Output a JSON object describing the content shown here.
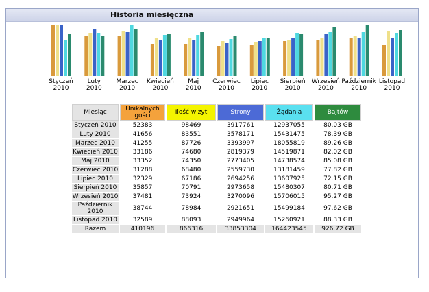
{
  "title": "Historia miesięczna",
  "colors": {
    "visitors": "#f4a23c",
    "visits": "#f4f400",
    "pages": "#4c6ad6",
    "hits": "#5ae0f0",
    "bandwidth": "#2e8b3e",
    "month": "#e4e4e4"
  },
  "table": {
    "headers": [
      "Miesiąc",
      "Unikalnych gości",
      "Ilość wizyt",
      "Strony",
      "Żądania",
      "Bajtów"
    ],
    "rows": [
      {
        "month": "Styczeń 2010",
        "visitors": "52383",
        "visits": "98469",
        "pages": "3917761",
        "hits": "12937055",
        "bandwidth": "80.03 GB"
      },
      {
        "month": "Luty 2010",
        "visitors": "41656",
        "visits": "83551",
        "pages": "3578171",
        "hits": "15431475",
        "bandwidth": "78.39 GB"
      },
      {
        "month": "Marzec 2010",
        "visitors": "41255",
        "visits": "87726",
        "pages": "3393997",
        "hits": "18055819",
        "bandwidth": "89.26 GB"
      },
      {
        "month": "Kwiecień 2010",
        "visitors": "33186",
        "visits": "74680",
        "pages": "2819379",
        "hits": "14519871",
        "bandwidth": "82.02 GB"
      },
      {
        "month": "Maj 2010",
        "visitors": "33352",
        "visits": "74350",
        "pages": "2773405",
        "hits": "14738574",
        "bandwidth": "85.08 GB"
      },
      {
        "month": "Czerwiec 2010",
        "visitors": "31288",
        "visits": "68480",
        "pages": "2559730",
        "hits": "13181459",
        "bandwidth": "77.82 GB"
      },
      {
        "month": "Lipiec 2010",
        "visitors": "32329",
        "visits": "67186",
        "pages": "2694256",
        "hits": "13607925",
        "bandwidth": "72.15 GB"
      },
      {
        "month": "Sierpień 2010",
        "visitors": "35857",
        "visits": "70791",
        "pages": "2973658",
        "hits": "15480307",
        "bandwidth": "80.71 GB"
      },
      {
        "month": "Wrzesień 2010",
        "visitors": "37481",
        "visits": "73924",
        "pages": "3270096",
        "hits": "15706015",
        "bandwidth": "95.27 GB"
      },
      {
        "month": "Październik 2010",
        "visitors": "38744",
        "visits": "78984",
        "pages": "2921651",
        "hits": "15499184",
        "bandwidth": "97.62 GB"
      },
      {
        "month": "Listopad 2010",
        "visitors": "32589",
        "visits": "88093",
        "pages": "2949964",
        "hits": "15260921",
        "bandwidth": "88.33 GB"
      }
    ],
    "total": {
      "label": "Razem",
      "visitors": "410196",
      "visits": "866316",
      "pages": "33853304",
      "hits": "164423545",
      "bandwidth": "926.72 GB"
    }
  },
  "chart_data": {
    "type": "bar",
    "categories": [
      "Styczeń 2010",
      "Luty 2010",
      "Marzec 2010",
      "Kwiecień 2010",
      "Maj 2010",
      "Czerwiec 2010",
      "Lipiec 2010",
      "Sierpień 2010",
      "Wrzesień 2010",
      "Październik 2010",
      "Listopad 2010"
    ],
    "category_labels": [
      [
        "Styczeń",
        "2010"
      ],
      [
        "Luty",
        "2010"
      ],
      [
        "Marzec",
        "2010"
      ],
      [
        "Kwiecień",
        "2010"
      ],
      [
        "Maj",
        "2010"
      ],
      [
        "Czerwiec",
        "2010"
      ],
      [
        "Lipiec",
        "2010"
      ],
      [
        "Sierpień",
        "2010"
      ],
      [
        "Wrzesień",
        "2010"
      ],
      [
        "Październik",
        "2010"
      ],
      [
        "Listopad",
        "2010"
      ]
    ],
    "series": [
      {
        "key": "visitors",
        "color": "#d99a3c",
        "values": [
          52383,
          41656,
          41255,
          33186,
          33352,
          31288,
          32329,
          35857,
          37481,
          38744,
          32589
        ]
      },
      {
        "key": "visits",
        "color": "#efe08a",
        "values": [
          98469,
          83551,
          87726,
          74680,
          74350,
          68480,
          67186,
          70791,
          73924,
          78984,
          88093
        ]
      },
      {
        "key": "pages",
        "color": "#3a63c8",
        "values": [
          3917761,
          3578171,
          3393997,
          2819379,
          2773405,
          2559730,
          2694256,
          2973658,
          3270096,
          2921651,
          2949964
        ]
      },
      {
        "key": "hits",
        "color": "#4fd8e0",
        "values": [
          12937055,
          15431475,
          18055819,
          14519871,
          14738574,
          13181459,
          13607925,
          15480307,
          15706015,
          15499184,
          15260921
        ]
      },
      {
        "key": "bandwidth",
        "color": "#2a8a6e",
        "values": [
          80.03,
          78.39,
          89.26,
          82.02,
          85.08,
          77.82,
          72.15,
          80.71,
          95.27,
          97.62,
          88.33
        ]
      }
    ]
  }
}
